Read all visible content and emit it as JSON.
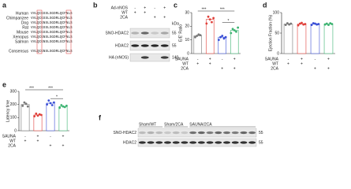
{
  "figure": {
    "panel_labels": [
      "a",
      "b",
      "c",
      "d",
      "e",
      "f"
    ],
    "alignment": {
      "species": [
        "Human",
        "Chimpanzee",
        "Dog",
        "Rat",
        "Mouse",
        "Xenopus",
        "Salmon"
      ],
      "sequences": [
        "VVLQCGSSLSGDRLQCFNLS",
        "VVLQCGSSLSGDRLQCFNLS",
        "VVLQCGNSLSGDRLQCFNLS",
        "VVLQCGSSLSGDRLQCFNLS",
        "VVLQCGSSLSGDRLQCFNLS",
        "VVLQCGNSLSGDRLQCFNLS",
        "VVLQCGNSLSGDRLGCFNLS"
      ],
      "consensus_label": "Consensus",
      "consensus": "VVLQCGNSLSGDRLQCFNLS"
    },
    "blot_b": {
      "conditions": [
        {
          "name": "Ad-nNOS",
          "marks": [
            "-",
            "+",
            "-",
            "+"
          ]
        },
        {
          "name": "WT",
          "marks": [
            "+",
            "+",
            null,
            null
          ]
        },
        {
          "name": "2CA",
          "marks": [
            null,
            null,
            "+",
            "+"
          ]
        }
      ],
      "rows": [
        "SNO-HDAC2",
        "HDAC2",
        "HA (nNOS)"
      ],
      "unit": "kDa",
      "sizes": [
        55,
        55,
        140
      ]
    },
    "blot_f": {
      "groups": [
        "Sham/WT",
        "Sham/2CA",
        "SAUNA/2CA"
      ],
      "rows": [
        "SNO-HDAC2",
        "HDAC2"
      ],
      "sizes": [
        55,
        55
      ]
    }
  },
  "chart_data": [
    {
      "type": "bar",
      "ylabel": "E/E' Ratio",
      "ylim": [
        0,
        30
      ],
      "yticks": [
        0,
        10,
        20,
        30
      ],
      "values": [
        13,
        25,
        12,
        17
      ],
      "colors": [
        "#777777",
        "#e0403a",
        "#3a4fd6",
        "#3cb371"
      ],
      "points": [
        [
          12,
          13,
          14,
          13.5
        ],
        [
          22,
          27,
          25,
          23,
          26
        ],
        [
          10,
          12,
          13,
          11,
          12
        ],
        [
          15,
          18,
          17,
          16,
          19
        ]
      ],
      "conditions": [
        {
          "name": "SAUNA",
          "marks": [
            "-",
            "+",
            "-",
            "+"
          ]
        },
        {
          "name": "WT",
          "marks": [
            "+",
            "+",
            null,
            null
          ]
        },
        {
          "name": "2CA",
          "marks": [
            null,
            null,
            "+",
            "+"
          ]
        }
      ],
      "annotations": [
        "***",
        "***",
        "*"
      ]
    },
    {
      "type": "bar",
      "ylabel": "Ejection Fraction (%)",
      "ylim": [
        0,
        100
      ],
      "yticks": [
        0,
        50,
        100
      ],
      "values": [
        72,
        72,
        72,
        72
      ],
      "colors": [
        "#777777",
        "#e0403a",
        "#3a4fd6",
        "#3cb371"
      ],
      "points": [
        [
          70,
          74,
          71,
          73
        ],
        [
          69,
          73,
          75,
          71,
          72
        ],
        [
          70,
          74,
          73,
          71,
          72
        ],
        [
          71,
          73,
          70,
          74,
          72
        ]
      ],
      "conditions": [
        {
          "name": "SAUNA",
          "marks": [
            "-",
            "+",
            "-",
            "+"
          ]
        },
        {
          "name": "WT",
          "marks": [
            "+",
            "+",
            null,
            null
          ]
        },
        {
          "name": "2CA",
          "marks": [
            null,
            null,
            "+",
            "+"
          ]
        }
      ]
    },
    {
      "type": "bar",
      "ylabel": "Latency time",
      "ylim": [
        0,
        300
      ],
      "yticks": [
        0,
        100,
        200,
        300
      ],
      "values": [
        200,
        120,
        210,
        185
      ],
      "colors": [
        "#777777",
        "#e0403a",
        "#3a4fd6",
        "#3cb371"
      ],
      "points": [
        [
          190,
          215,
          205,
          185
        ],
        [
          110,
          130,
          115,
          125,
          120
        ],
        [
          200,
          230,
          210,
          195,
          215
        ],
        [
          175,
          195,
          185,
          180,
          190
        ]
      ],
      "conditions": [
        {
          "name": "SAUNA",
          "marks": [
            "-",
            "+",
            "-",
            "+"
          ]
        },
        {
          "name": "WT",
          "marks": [
            "+",
            "+",
            null,
            null
          ]
        },
        {
          "name": "2CA",
          "marks": [
            null,
            null,
            "+",
            "+"
          ]
        }
      ],
      "annotations": [
        "***",
        "***",
        "*"
      ]
    }
  ]
}
